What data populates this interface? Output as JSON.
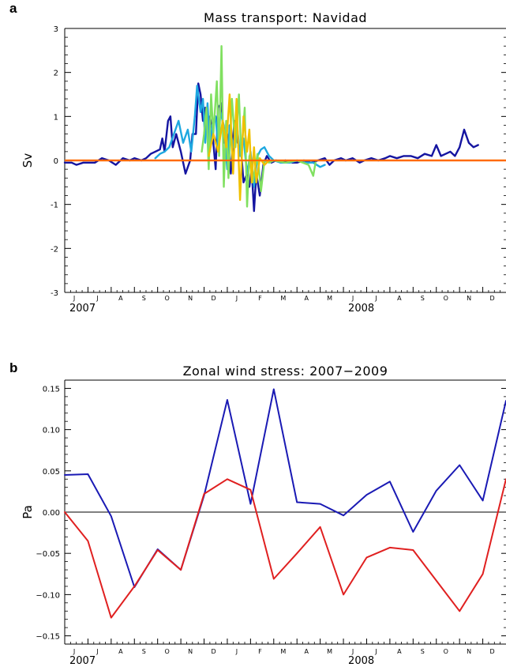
{
  "chart_data": [
    {
      "panel": "a",
      "type": "line",
      "title": "Mass transport: Navidad",
      "ylabel": "Sv",
      "xlabel": "",
      "ylim": [
        -3,
        3
      ],
      "yticks": [
        -3,
        -2,
        -1,
        0,
        1,
        2,
        3
      ],
      "x_month_labels": [
        "J",
        "J",
        "A",
        "S",
        "O",
        "N",
        "D",
        "J",
        "F",
        "M",
        "A",
        "M",
        "J",
        "J",
        "A",
        "S",
        "O",
        "N",
        "D"
      ],
      "year_labels": [
        {
          "text": "2007",
          "month_index": 0
        },
        {
          "text": "2008",
          "month_index": 12
        }
      ],
      "zero_line_color": "#ff6a00",
      "series": [
        {
          "color": "#1414a0",
          "points": [
            [
              0,
              -0.05
            ],
            [
              0.3,
              -0.05
            ],
            [
              0.5,
              -0.1
            ],
            [
              0.8,
              -0.05
            ],
            [
              1.0,
              -0.05
            ],
            [
              1.3,
              -0.05
            ],
            [
              1.6,
              0.05
            ],
            [
              1.9,
              0.0
            ],
            [
              2.2,
              -0.1
            ],
            [
              2.5,
              0.05
            ],
            [
              2.8,
              0.0
            ],
            [
              3.0,
              0.05
            ],
            [
              3.3,
              0.0
            ],
            [
              3.5,
              0.05
            ],
            [
              3.7,
              0.15
            ],
            [
              3.9,
              0.2
            ],
            [
              4.1,
              0.25
            ],
            [
              4.2,
              0.5
            ],
            [
              4.3,
              0.2
            ],
            [
              4.45,
              0.9
            ],
            [
              4.55,
              1.0
            ],
            [
              4.65,
              0.3
            ],
            [
              4.8,
              0.6
            ],
            [
              5.0,
              0.2
            ],
            [
              5.2,
              -0.3
            ],
            [
              5.4,
              0.0
            ],
            [
              5.5,
              0.6
            ],
            [
              5.65,
              0.6
            ],
            [
              5.75,
              1.75
            ],
            [
              5.85,
              1.5
            ],
            [
              5.95,
              0.9
            ],
            [
              6.05,
              1.2
            ],
            [
              6.15,
              0.7
            ],
            [
              6.25,
              1.0
            ],
            [
              6.35,
              0.7
            ],
            [
              6.5,
              -0.2
            ],
            [
              6.6,
              1.2
            ],
            [
              6.75,
              1.3
            ],
            [
              6.85,
              0.4
            ],
            [
              7.0,
              0.6
            ],
            [
              7.15,
              -0.3
            ],
            [
              7.3,
              0.9
            ],
            [
              7.45,
              0.4
            ],
            [
              7.6,
              0.2
            ],
            [
              7.7,
              -0.5
            ],
            [
              7.85,
              -0.3
            ],
            [
              7.95,
              -0.6
            ],
            [
              8.05,
              -0.2
            ],
            [
              8.15,
              -1.15
            ],
            [
              8.25,
              -0.3
            ],
            [
              8.4,
              -0.8
            ],
            [
              8.55,
              -0.1
            ],
            [
              8.7,
              0.1
            ],
            [
              8.9,
              -0.05
            ],
            [
              9.1,
              0.0
            ],
            [
              9.3,
              -0.05
            ],
            [
              9.5,
              0.0
            ],
            [
              9.8,
              -0.05
            ],
            [
              10.0,
              -0.05
            ],
            [
              10.3,
              0.0
            ],
            [
              10.6,
              -0.05
            ],
            [
              10.9,
              0.0
            ],
            [
              11.2,
              0.05
            ],
            [
              11.4,
              -0.1
            ],
            [
              11.6,
              0.0
            ],
            [
              11.9,
              0.05
            ],
            [
              12.1,
              0.0
            ],
            [
              12.4,
              0.05
            ],
            [
              12.7,
              -0.05
            ],
            [
              12.9,
              0.0
            ],
            [
              13.2,
              0.05
            ],
            [
              13.5,
              0.0
            ],
            [
              13.8,
              0.05
            ],
            [
              14.0,
              0.1
            ],
            [
              14.3,
              0.05
            ],
            [
              14.6,
              0.1
            ],
            [
              14.9,
              0.1
            ],
            [
              15.2,
              0.05
            ],
            [
              15.5,
              0.15
            ],
            [
              15.8,
              0.1
            ],
            [
              16.0,
              0.35
            ],
            [
              16.2,
              0.1
            ],
            [
              16.4,
              0.15
            ],
            [
              16.6,
              0.2
            ],
            [
              16.8,
              0.1
            ],
            [
              17.0,
              0.3
            ],
            [
              17.2,
              0.7
            ],
            [
              17.4,
              0.4
            ],
            [
              17.6,
              0.3
            ],
            [
              17.8,
              0.35
            ]
          ]
        },
        {
          "color": "#1ea8e0",
          "points": [
            [
              3.9,
              0.05
            ],
            [
              4.1,
              0.15
            ],
            [
              4.3,
              0.2
            ],
            [
              4.5,
              0.3
            ],
            [
              4.7,
              0.6
            ],
            [
              4.9,
              0.9
            ],
            [
              5.1,
              0.4
            ],
            [
              5.3,
              0.7
            ],
            [
              5.45,
              0.2
            ],
            [
              5.6,
              1.0
            ],
            [
              5.7,
              1.7
            ],
            [
              5.85,
              1.1
            ],
            [
              5.95,
              1.4
            ],
            [
              6.05,
              0.4
            ],
            [
              6.15,
              1.3
            ],
            [
              6.25,
              0.2
            ],
            [
              6.35,
              0.8
            ],
            [
              6.5,
              1.0
            ],
            [
              6.6,
              0.3
            ],
            [
              6.7,
              1.1
            ],
            [
              6.85,
              0.8
            ],
            [
              7.0,
              -0.2
            ],
            [
              7.1,
              0.8
            ],
            [
              7.25,
              0.3
            ],
            [
              7.4,
              0.9
            ],
            [
              7.55,
              0.1
            ],
            [
              7.7,
              0.5
            ],
            [
              7.85,
              -0.3
            ],
            [
              8.0,
              0.2
            ],
            [
              8.15,
              -0.6
            ],
            [
              8.3,
              0.1
            ],
            [
              8.45,
              0.25
            ],
            [
              8.6,
              0.3
            ],
            [
              8.8,
              0.1
            ],
            [
              9.0,
              0.0
            ],
            [
              9.3,
              -0.05
            ],
            [
              9.7,
              -0.05
            ],
            [
              10.0,
              0.0
            ],
            [
              10.3,
              -0.05
            ],
            [
              10.7,
              -0.05
            ],
            [
              11.0,
              -0.15
            ],
            [
              11.2,
              -0.1
            ]
          ]
        },
        {
          "color": "#80e060",
          "points": [
            [
              5.9,
              0.2
            ],
            [
              6.0,
              0.6
            ],
            [
              6.1,
              1.2
            ],
            [
              6.2,
              -0.2
            ],
            [
              6.3,
              1.5
            ],
            [
              6.4,
              0.6
            ],
            [
              6.55,
              1.8
            ],
            [
              6.65,
              0.1
            ],
            [
              6.75,
              2.6
            ],
            [
              6.85,
              -0.6
            ],
            [
              6.95,
              0.9
            ],
            [
              7.05,
              -0.4
            ],
            [
              7.2,
              1.4
            ],
            [
              7.35,
              0.3
            ],
            [
              7.5,
              1.5
            ],
            [
              7.6,
              0.1
            ],
            [
              7.75,
              1.2
            ],
            [
              7.85,
              -1.05
            ],
            [
              7.95,
              0.1
            ],
            [
              8.1,
              -0.5
            ],
            [
              8.3,
              0.15
            ],
            [
              8.45,
              -0.7
            ],
            [
              8.6,
              0.0
            ],
            [
              8.8,
              -0.05
            ],
            [
              9.0,
              0.0
            ],
            [
              9.5,
              -0.05
            ],
            [
              10.0,
              0.0
            ],
            [
              10.5,
              -0.1
            ],
            [
              10.7,
              -0.35
            ],
            [
              10.8,
              -0.05
            ]
          ]
        },
        {
          "color": "#f0c000",
          "points": [
            [
              6.2,
              0.1
            ],
            [
              6.4,
              0.6
            ],
            [
              6.6,
              0.2
            ],
            [
              6.8,
              0.9
            ],
            [
              6.95,
              0.3
            ],
            [
              7.1,
              1.5
            ],
            [
              7.25,
              -0.3
            ],
            [
              7.4,
              1.4
            ],
            [
              7.55,
              -0.9
            ],
            [
              7.7,
              1.0
            ],
            [
              7.85,
              0.2
            ],
            [
              7.95,
              0.7
            ],
            [
              8.05,
              -0.5
            ],
            [
              8.15,
              0.3
            ],
            [
              8.25,
              -0.5
            ],
            [
              8.4,
              0.05
            ],
            [
              8.6,
              -0.1
            ],
            [
              8.8,
              0.0
            ]
          ]
        }
      ]
    },
    {
      "panel": "b",
      "type": "line",
      "title": "Zonal wind stress: 2007−2009",
      "ylabel": "Pa",
      "xlabel": "",
      "ylim": [
        -0.16,
        0.16
      ],
      "yticks": [
        -0.15,
        -0.1,
        -0.05,
        0.0,
        0.05,
        0.1,
        0.15
      ],
      "ytick_labels": [
        "−0.15",
        "−0.10",
        "−0.05",
        "0.00",
        "0.05",
        "0.10",
        "0.15"
      ],
      "x_month_labels": [
        "J",
        "J",
        "A",
        "S",
        "O",
        "N",
        "D",
        "J",
        "F",
        "M",
        "A",
        "M",
        "J",
        "J",
        "A",
        "S",
        "O",
        "N",
        "D"
      ],
      "year_labels": [
        {
          "text": "2007",
          "month_index": 0
        },
        {
          "text": "2008",
          "month_index": 12
        }
      ],
      "zero_line_color": "#000000",
      "series": [
        {
          "color": "#1a1ab4",
          "x": [
            0,
            1,
            2,
            3,
            4,
            5,
            6,
            7,
            8,
            9,
            10,
            11,
            12,
            13,
            14,
            15,
            16,
            17,
            18
          ],
          "values": [
            0.045,
            0.046,
            -0.005,
            -0.091,
            -0.045,
            -0.07,
            0.02,
            0.136,
            0.01,
            0.149,
            0.012,
            0.01,
            -0.004,
            0.021,
            0.037,
            -0.024,
            0.026,
            0.057,
            0.014
          ]
        },
        {
          "color": "#e02020",
          "x": [
            0,
            1,
            2,
            3,
            4,
            5,
            6,
            7,
            8,
            9,
            10,
            11,
            12,
            13,
            14,
            15,
            16,
            17,
            18
          ],
          "values": [
            0.0,
            -0.035,
            -0.128,
            -0.09,
            -0.046,
            -0.07,
            0.022,
            0.04,
            0.027,
            -0.081,
            -0.05,
            -0.018,
            -0.1,
            -0.055,
            -0.043,
            -0.046,
            -0.083,
            -0.12,
            -0.075
          ]
        }
      ],
      "right_edge_extension": {
        "blue": 0.135,
        "red": 0.04
      }
    }
  ]
}
